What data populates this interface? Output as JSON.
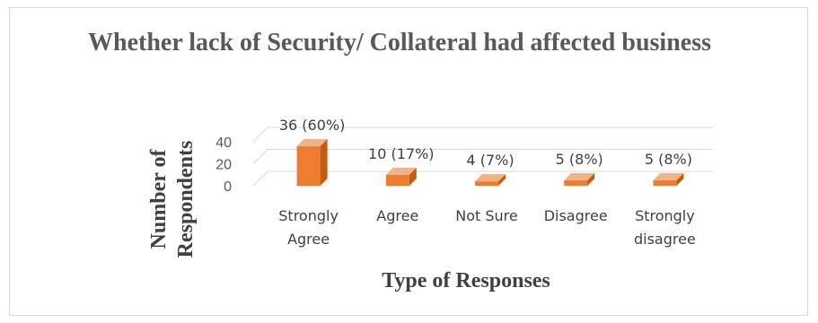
{
  "chart_data": {
    "type": "bar",
    "title": "Whether lack of Security/ Collateral had affected business",
    "xlabel": "Type of Responses",
    "ylabel_lines": [
      "Number of",
      "Respondents"
    ],
    "categories": [
      [
        "Strongly",
        "Agree"
      ],
      [
        "Agree"
      ],
      [
        "Not Sure"
      ],
      [
        "Disagree"
      ],
      [
        "Strongly",
        "disagree"
      ]
    ],
    "values": [
      36,
      10,
      4,
      5,
      5
    ],
    "data_labels": [
      "36 (60%)",
      "10 (17%)",
      "4 (7%)",
      "5 (8%)",
      "5 (8%)"
    ],
    "yticks": [
      "0",
      "20",
      "40"
    ],
    "ylim": [
      0,
      40
    ],
    "grid": true,
    "legend": "none",
    "bar_color": "#ED7D31",
    "bar_side_color": "#C55A11",
    "bar_top_color": "#F4B183"
  }
}
